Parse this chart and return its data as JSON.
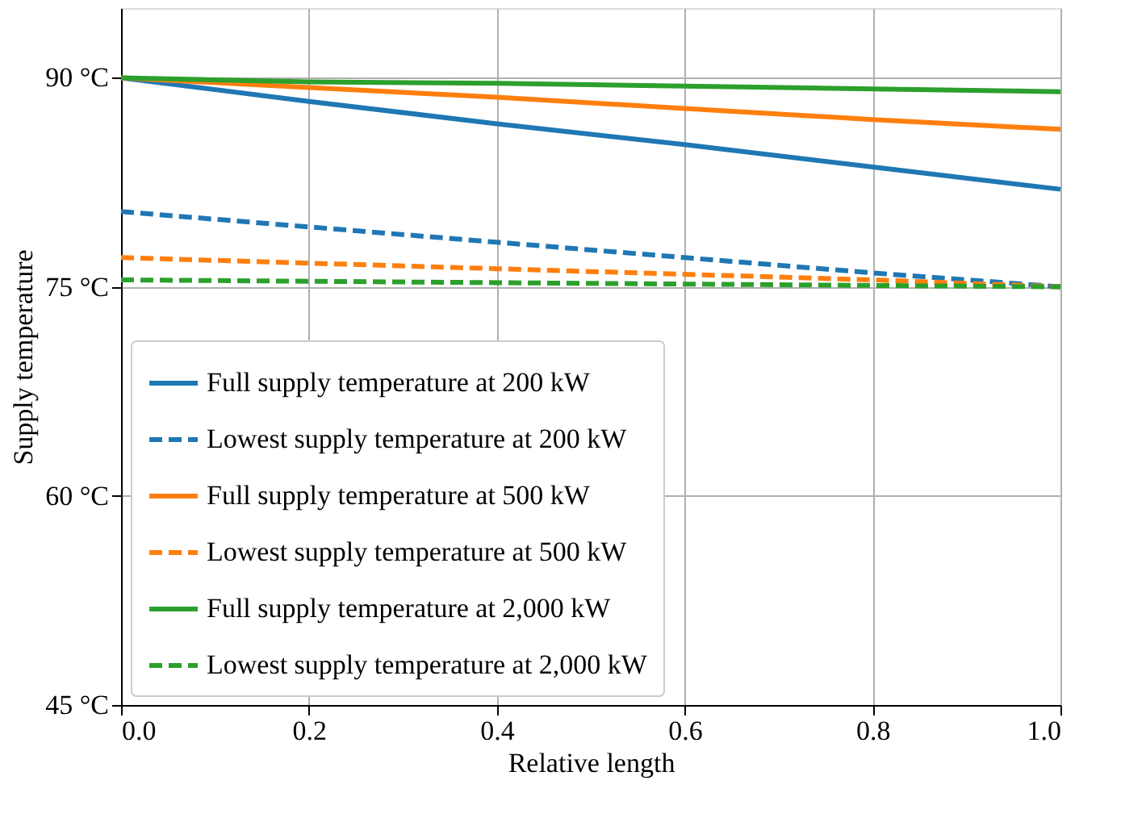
{
  "chart_data": {
    "type": "line",
    "xlabel": "Relative length",
    "ylabel": "Supply temperature",
    "x": [
      0.0,
      0.2,
      0.4,
      0.6,
      0.8,
      1.0
    ],
    "series": [
      {
        "name": "Full supply temperature at 200 kW",
        "color": "#1f77b4",
        "line_style": "solid",
        "values": [
          90,
          88.3,
          86.7,
          85.2,
          83.6,
          82.0
        ]
      },
      {
        "name": "Lowest supply temperature at 200 kW",
        "color": "#1f77b4",
        "line_style": "dashed",
        "values": [
          80.4,
          79.3,
          78.2,
          77.1,
          76.0,
          75.0
        ]
      },
      {
        "name": "Full supply temperature at 500 kW",
        "color": "#ff7f0e",
        "line_style": "solid",
        "values": [
          90,
          89.3,
          88.6,
          87.8,
          87.0,
          86.3
        ]
      },
      {
        "name": "Lowest supply temperature at 500 kW",
        "color": "#ff7f0e",
        "line_style": "dashed",
        "values": [
          77.1,
          76.7,
          76.3,
          75.9,
          75.5,
          75.0
        ]
      },
      {
        "name": "Full supply temperature at 2,000 kW",
        "color": "#2ca02c",
        "line_style": "solid",
        "values": [
          90,
          89.7,
          89.6,
          89.4,
          89.2,
          89.0
        ]
      },
      {
        "name": "Lowest supply temperature at 2,000 kW",
        "color": "#2ca02c",
        "line_style": "dashed",
        "values": [
          75.5,
          75.4,
          75.3,
          75.2,
          75.1,
          75.0
        ]
      }
    ],
    "xlim": [
      0,
      1
    ],
    "ylim": [
      45,
      95
    ],
    "xticks": [
      {
        "value": 0,
        "label": "0.0"
      },
      {
        "value": 0.2,
        "label": "0.2"
      },
      {
        "value": 0.4,
        "label": "0.4"
      },
      {
        "value": 0.6,
        "label": "0.6"
      },
      {
        "value": 0.8,
        "label": "0.8"
      },
      {
        "value": 1,
        "label": "1.0"
      }
    ],
    "yticks": [
      {
        "value": 45,
        "label": "45 °C"
      },
      {
        "value": 60,
        "label": "60 °C"
      },
      {
        "value": 75,
        "label": "75 °C"
      },
      {
        "value": 90,
        "label": "90 °C"
      }
    ],
    "grid": true,
    "legend": "bottom left",
    "marker": "none"
  }
}
